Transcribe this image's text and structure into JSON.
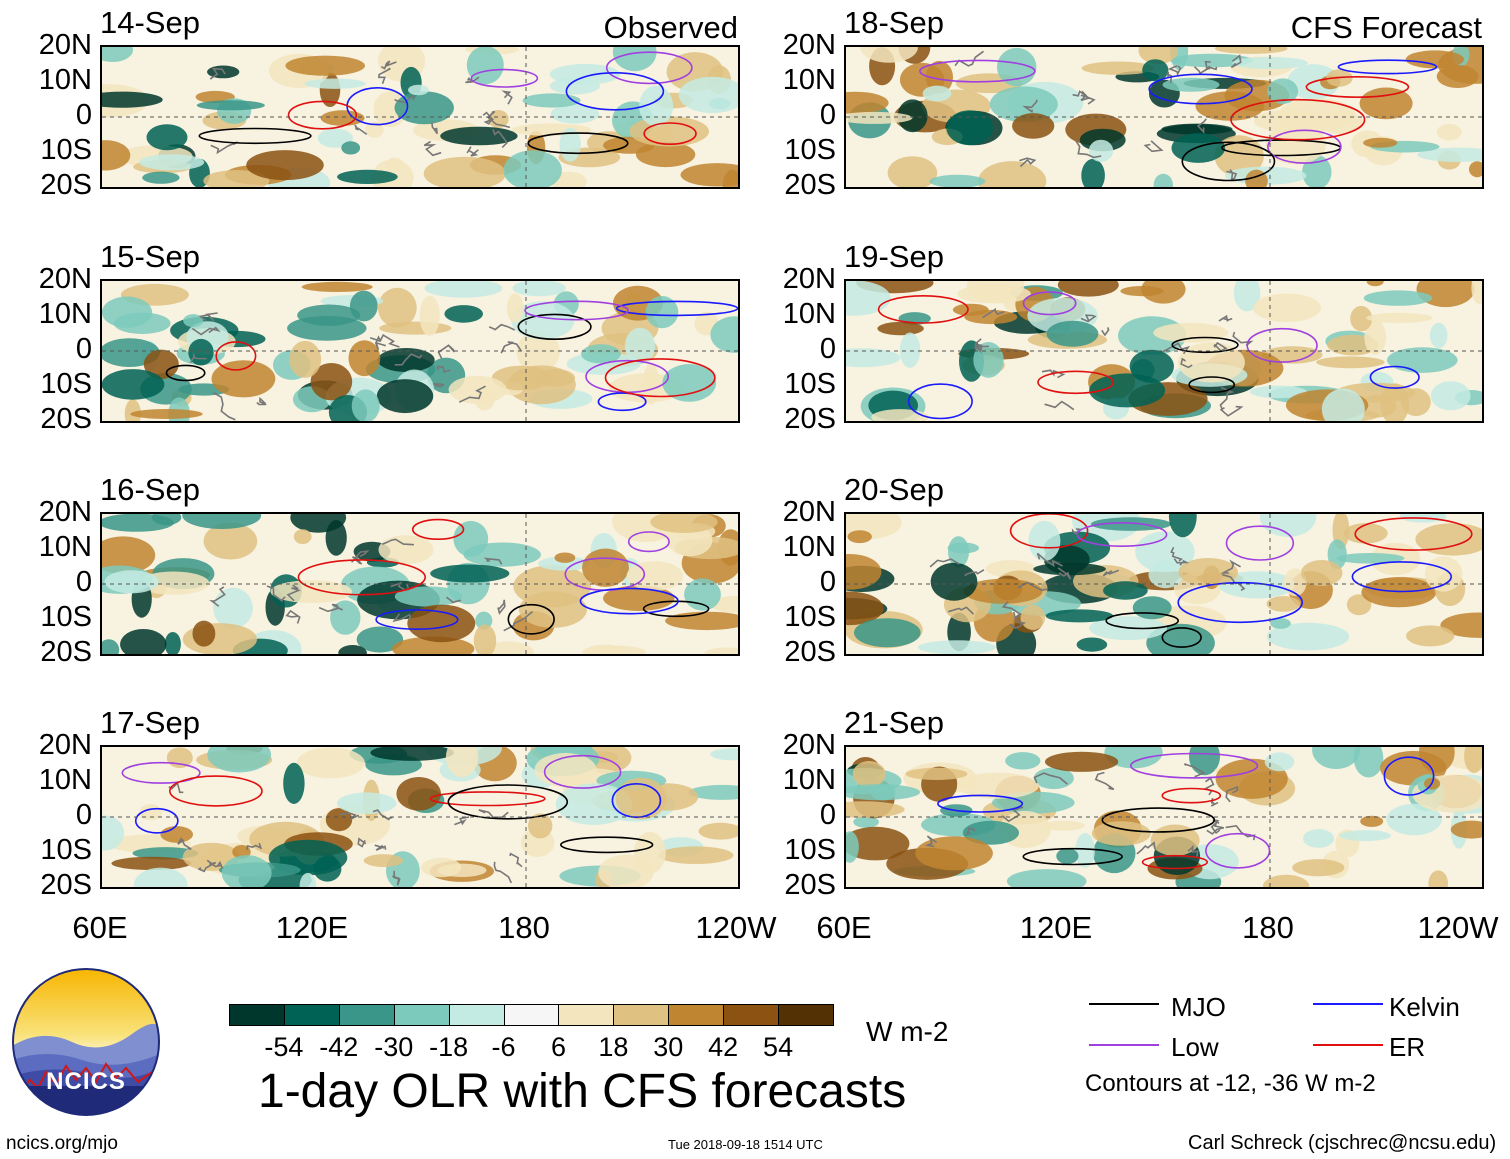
{
  "panels_observed": [
    {
      "date": "14-Sep",
      "tag": "Observed"
    },
    {
      "date": "15-Sep",
      "tag": ""
    },
    {
      "date": "16-Sep",
      "tag": ""
    },
    {
      "date": "17-Sep",
      "tag": ""
    }
  ],
  "panels_forecast": [
    {
      "date": "18-Sep",
      "tag": "CFS Forecast"
    },
    {
      "date": "19-Sep",
      "tag": ""
    },
    {
      "date": "20-Sep",
      "tag": ""
    },
    {
      "date": "21-Sep",
      "tag": ""
    }
  ],
  "lat_labels": [
    "20N",
    "10N",
    "0",
    "10S",
    "20S"
  ],
  "lon_labels": [
    "60E",
    "120E",
    "180",
    "120W"
  ],
  "colorbar": {
    "colors": [
      "#00372c",
      "#006254",
      "#3a9688",
      "#7ccabc",
      "#c4ebe3",
      "#f6f6f6",
      "#f3e5be",
      "#dfc181",
      "#bf8530",
      "#8b5212",
      "#543005"
    ],
    "labels": [
      "-54",
      "-42",
      "-30",
      "-18",
      "-6",
      "6",
      "18",
      "30",
      "42",
      "54"
    ],
    "units": "W m-2"
  },
  "legend": {
    "mjo": "MJO",
    "kelvin": "Kelvin",
    "low": "Low",
    "er": "ER",
    "note": "Contours at -12, -36 W m-2",
    "colors": {
      "mjo": "#000000",
      "kelvin": "#1a1aff",
      "low": "#a040e0",
      "er": "#e01010"
    }
  },
  "title": "1-day OLR with CFS forecasts",
  "logo_text": "NCICS",
  "site": "ncics.org/mjo",
  "timestamp": "Tue 2018-09-18 1514 UTC",
  "author": "Carl Schreck (cjschrec@ncsu.edu)",
  "chart_data": {
    "type": "heatmap",
    "title": "1-day OLR with CFS forecasts",
    "variable": "OLR anomaly",
    "units": "W m-2",
    "x_range": [
      "60E",
      "120W"
    ],
    "y_range": [
      "20S",
      "20N"
    ],
    "xticks": [
      "60E",
      "120E",
      "180",
      "120W"
    ],
    "yticks": [
      "20N",
      "10N",
      "0",
      "10S",
      "20S"
    ],
    "color_levels": [
      -54,
      -42,
      -30,
      -18,
      -6,
      6,
      18,
      30,
      42,
      54
    ],
    "contour_levels": [
      -12,
      -36
    ],
    "contour_series": [
      "MJO",
      "Kelvin",
      "Low",
      "ER"
    ],
    "panels": [
      "14-Sep",
      "15-Sep",
      "16-Sep",
      "17-Sep",
      "18-Sep",
      "19-Sep",
      "20-Sep",
      "21-Sep"
    ]
  }
}
